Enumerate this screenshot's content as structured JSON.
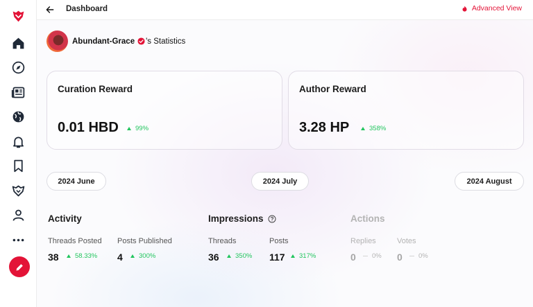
{
  "topbar": {
    "title": "Dashboard",
    "advanced_view": "Advanced View"
  },
  "sidebar": {
    "items": [
      {
        "icon": "home-icon"
      },
      {
        "icon": "explore-icon"
      },
      {
        "icon": "feed-icon"
      },
      {
        "icon": "globe-icon"
      },
      {
        "icon": "bell-icon"
      },
      {
        "icon": "bookmark-icon"
      },
      {
        "icon": "communities-icon"
      },
      {
        "icon": "user-icon"
      },
      {
        "icon": "more-icon"
      }
    ],
    "compose_icon": "pencil-icon"
  },
  "user": {
    "name": "Abundant-Grace",
    "suffix": "'s Statistics"
  },
  "cards": {
    "curation": {
      "title": "Curation Reward",
      "value": "0.01 HBD",
      "change": "99%"
    },
    "author": {
      "title": "Author Reward",
      "value": "3.28 HP",
      "change": "358%"
    }
  },
  "months": {
    "prev": "2024 June",
    "current": "2024 July",
    "next": "2024 August"
  },
  "activity": {
    "title": "Activity",
    "threads_label": "Threads Posted",
    "threads_value": "38",
    "threads_change": "58.33%",
    "posts_label": "Posts Published",
    "posts_value": "4",
    "posts_change": "300%"
  },
  "impressions": {
    "title": "Impressions",
    "threads_label": "Threads",
    "threads_value": "36",
    "threads_change": "350%",
    "posts_label": "Posts",
    "posts_value": "117",
    "posts_change": "317%"
  },
  "actions": {
    "title": "Actions",
    "replies_label": "Replies",
    "replies_value": "0",
    "replies_change": "0%",
    "votes_label": "Votes",
    "votes_value": "0",
    "votes_change": "0%"
  },
  "colors": {
    "accent": "#e31337",
    "positive": "#22c55e",
    "neutral": "#b3b3b3"
  }
}
